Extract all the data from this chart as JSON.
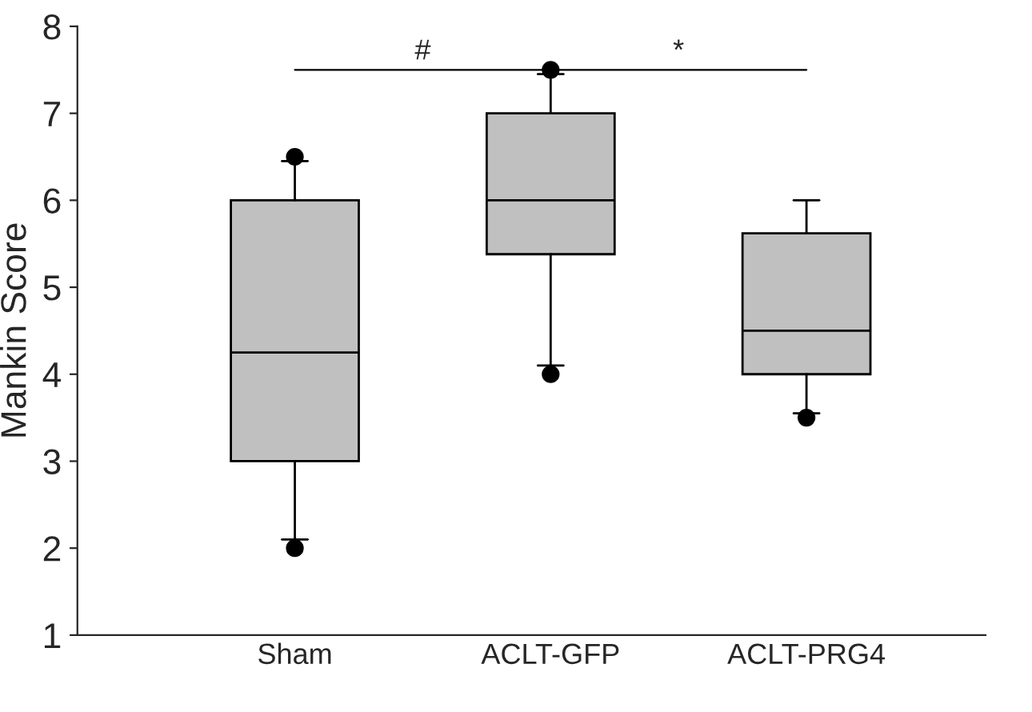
{
  "chart_data": {
    "type": "box",
    "ylabel": "Mankin Score",
    "categories": [
      "Sham",
      "ACLT-GFP",
      "ACLT-PRG4"
    ],
    "boxes": [
      {
        "low": 2.1,
        "q1": 3.0,
        "median": 4.25,
        "q3": 6.0,
        "high": 6.45,
        "outliers": [
          2.0,
          6.5
        ]
      },
      {
        "low": 4.1,
        "q1": 5.38,
        "median": 6.0,
        "q3": 7.0,
        "high": 7.45,
        "outliers": [
          4.0,
          7.5
        ]
      },
      {
        "low": 3.55,
        "q1": 4.0,
        "median": 4.5,
        "q3": 5.62,
        "high": 6.0,
        "outliers": [
          3.5
        ]
      }
    ],
    "color": "#c0c0c0",
    "ylim": [
      1,
      8
    ],
    "yticks": [
      1,
      2,
      3,
      4,
      5,
      6,
      7,
      8
    ],
    "annotations": [
      "#",
      "*"
    ],
    "grid": false,
    "legend": false
  }
}
